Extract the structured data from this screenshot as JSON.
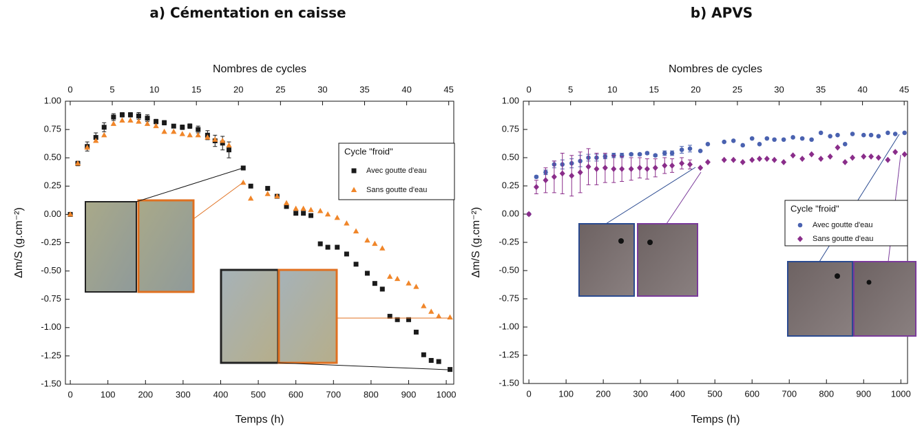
{
  "chart_data": [
    {
      "type": "scatter",
      "title": "a)   Cémentation en caisse",
      "xlabel": "Temps (h)",
      "x2label": "Nombres de cycles",
      "ylabel": "Δm/S (g.cm⁻²)",
      "xlim": [
        -13,
        1020
      ],
      "xticks": [
        0,
        100,
        200,
        300,
        400,
        500,
        600,
        700,
        800,
        900,
        1000
      ],
      "x2lim": [
        -0.57,
        45.6
      ],
      "x2ticks": [
        0,
        5,
        10,
        15,
        20,
        25,
        30,
        35,
        40,
        45
      ],
      "ylim": [
        -1.5,
        1.0
      ],
      "yticks": [
        {
          "value": -1.5,
          "label": "-1.50"
        },
        -1.25,
        {
          "value": -1,
          "label": "-1.00"
        },
        -0.75,
        {
          "value": -0.5,
          "label": "-0.50"
        },
        -0.25,
        {
          "value": 0,
          "label": "0.00"
        },
        0.25,
        {
          "value": 0.5,
          "label": "0.50"
        },
        0.75,
        {
          "value": 1,
          "label": "1.00"
        }
      ],
      "legend_title": "Cycle \"froid\"",
      "x": [
        0,
        20,
        45,
        68,
        90,
        115,
        138,
        160,
        182,
        205,
        228,
        250,
        275,
        298,
        318,
        340,
        365,
        385,
        405,
        422,
        460,
        480,
        525,
        550,
        575,
        600,
        620,
        640,
        665,
        685,
        710,
        735,
        760,
        790,
        810,
        830,
        850,
        870,
        900,
        920,
        940,
        960,
        980,
        1010
      ],
      "series": [
        {
          "name": "Avec goutte d'eau",
          "color": "#1a1a1a",
          "marker": "square",
          "values": [
            0,
            0.45,
            0.6,
            0.68,
            0.77,
            0.86,
            0.88,
            0.88,
            0.87,
            0.85,
            0.82,
            0.81,
            0.78,
            0.77,
            0.78,
            0.75,
            0.7,
            0.65,
            0.63,
            0.57,
            0.41,
            0.25,
            0.23,
            0.16,
            0.07,
            0.01,
            0.01,
            -0.01,
            -0.26,
            -0.29,
            -0.29,
            -0.35,
            -0.44,
            -0.52,
            -0.61,
            -0.66,
            -0.9,
            -0.93,
            -0.93,
            -1.04,
            -1.24,
            -1.29,
            -1.3,
            -1.37
          ],
          "errors": [
            null,
            0.02,
            0.04,
            0.04,
            0.04,
            0.03,
            0.02,
            0.02,
            0.03,
            0.03,
            0.02,
            0.02,
            0.01,
            0.02,
            0.02,
            0.03,
            0.04,
            0.05,
            0.06,
            0.07,
            null,
            null,
            null,
            null,
            null,
            null,
            null,
            null,
            null,
            null,
            null,
            null,
            null,
            null,
            null,
            null,
            null,
            null,
            null,
            null,
            null,
            null,
            null,
            null
          ]
        },
        {
          "name": "Sans goutte d'eau",
          "color": "#f0862a",
          "marker": "triangle",
          "values": [
            0,
            0.45,
            0.59,
            0.65,
            0.7,
            0.8,
            0.83,
            0.83,
            0.82,
            0.8,
            0.78,
            0.73,
            0.73,
            0.71,
            0.7,
            0.7,
            0.68,
            0.66,
            0.65,
            0.61,
            0.28,
            0.14,
            0.18,
            0.16,
            0.1,
            0.05,
            0.05,
            0.04,
            0.03,
            0.0,
            -0.03,
            -0.08,
            -0.15,
            -0.23,
            -0.26,
            -0.3,
            -0.55,
            -0.57,
            -0.61,
            -0.64,
            -0.81,
            -0.86,
            -0.9,
            -0.91
          ]
        }
      ]
    },
    {
      "type": "scatter",
      "title": "b)   APVS",
      "xlabel": "Temps (h)",
      "x2label": "Nombres de cycles",
      "ylabel": "Δm/S (g.cm⁻²)",
      "xlim": [
        -15,
        1018
      ],
      "xticks": [
        0,
        100,
        200,
        300,
        400,
        500,
        600,
        700,
        800,
        900,
        1000
      ],
      "x2lim": [
        -0.67,
        45.4
      ],
      "x2ticks": [
        0,
        5,
        10,
        15,
        20,
        25,
        30,
        35,
        40,
        45
      ],
      "ylim": [
        -1.5,
        1.0
      ],
      "yticks": [
        {
          "value": -1.5,
          "label": "-1.50"
        },
        -1.25,
        {
          "value": -1,
          "label": "-1.00"
        },
        -0.75,
        {
          "value": -0.5,
          "label": "-0.50"
        },
        -0.25,
        {
          "value": 0,
          "label": "0.00"
        },
        0.25,
        {
          "value": 0.5,
          "label": "0.50"
        },
        0.75,
        {
          "value": 1,
          "label": "1.00"
        }
      ],
      "legend_title": "Cycle \"froid\"",
      "x": [
        0,
        20,
        45,
        68,
        90,
        115,
        138,
        160,
        182,
        205,
        228,
        250,
        275,
        298,
        318,
        340,
        365,
        385,
        411,
        433,
        461,
        481,
        525,
        550,
        575,
        600,
        620,
        640,
        660,
        685,
        710,
        735,
        760,
        785,
        810,
        830,
        850,
        870,
        900,
        920,
        940,
        965,
        985,
        1010
      ],
      "series": [
        {
          "name": "Avec goutte d'eau",
          "color": "#4a62b0",
          "marker": "circle",
          "values": [
            0,
            0.33,
            0.37,
            0.44,
            0.44,
            0.45,
            0.47,
            0.5,
            0.5,
            0.51,
            0.52,
            0.52,
            0.53,
            0.53,
            0.54,
            0.52,
            0.54,
            0.54,
            0.57,
            0.58,
            0.56,
            0.62,
            0.64,
            0.65,
            0.61,
            0.67,
            0.62,
            0.67,
            0.66,
            0.66,
            0.68,
            0.67,
            0.66,
            0.72,
            0.69,
            0.7,
            0.62,
            0.71,
            0.7,
            0.7,
            0.69,
            0.72,
            0.71,
            0.72
          ],
          "errors": [
            null,
            0.01,
            0.02,
            0.03,
            0.04,
            0.04,
            0.05,
            0.03,
            0.03,
            0.02,
            0.02,
            0.02,
            0.01,
            0.01,
            0.01,
            0.01,
            0.02,
            0.02,
            0.03,
            0.03,
            null,
            null,
            null,
            null,
            null,
            null,
            null,
            null,
            null,
            null,
            null,
            null,
            null,
            null,
            null,
            null,
            null,
            null,
            null,
            null,
            null,
            null,
            null,
            null
          ]
        },
        {
          "name": "Sans goutte d'eau",
          "color": "#8a2d8a",
          "marker": "diamond",
          "values": [
            0,
            0.24,
            0.3,
            0.33,
            0.36,
            0.34,
            0.37,
            0.42,
            0.4,
            0.41,
            0.4,
            0.4,
            0.4,
            0.41,
            0.4,
            0.41,
            0.43,
            0.43,
            0.45,
            0.44,
            0.41,
            0.46,
            0.48,
            0.48,
            0.46,
            0.48,
            0.49,
            0.49,
            0.48,
            0.46,
            0.52,
            0.49,
            0.53,
            0.49,
            0.51,
            0.59,
            0.46,
            0.5,
            0.51,
            0.51,
            0.5,
            0.48,
            0.55,
            0.53
          ],
          "errors": [
            null,
            0.06,
            0.11,
            0.14,
            0.18,
            0.18,
            0.18,
            0.16,
            0.14,
            0.13,
            0.12,
            0.11,
            0.1,
            0.09,
            0.09,
            0.08,
            0.07,
            0.06,
            0.05,
            0.04,
            null,
            null,
            null,
            null,
            null,
            null,
            null,
            null,
            null,
            null,
            null,
            null,
            null,
            null,
            null,
            null,
            null,
            null,
            null,
            null,
            null,
            null,
            null,
            null
          ]
        }
      ]
    }
  ]
}
